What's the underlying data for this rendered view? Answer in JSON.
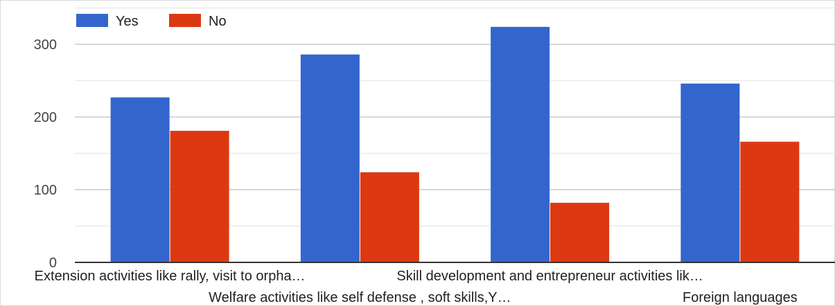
{
  "chart_data": {
    "type": "bar",
    "categories": [
      "Extension activities like rally, visit to orpha…",
      "Welfare activities like self defense , soft skills,Y…",
      "Skill development and entrepreneur activities lik…",
      "Foreign languages"
    ],
    "series": [
      {
        "name": "Yes",
        "color": "#3366cc",
        "values": [
          227,
          286,
          324,
          246
        ]
      },
      {
        "name": "No",
        "color": "#dc3912",
        "values": [
          181,
          124,
          82,
          166
        ]
      }
    ],
    "ylim": [
      0,
      350
    ],
    "yticks": [
      0,
      100,
      200,
      300
    ],
    "grid": true,
    "legend_position": "top-left"
  }
}
